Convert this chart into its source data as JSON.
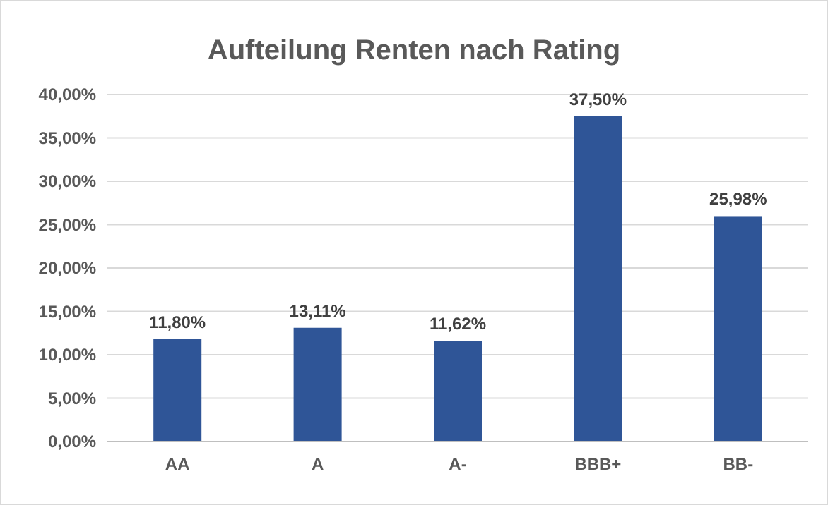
{
  "chart_data": {
    "type": "bar",
    "title": "Aufteilung Renten nach Rating",
    "categories": [
      "AA",
      "A",
      "A-",
      "BBB+",
      "BB-"
    ],
    "values": [
      11.8,
      13.11,
      11.62,
      37.5,
      25.98
    ],
    "value_labels": [
      "11,80%",
      "13,11%",
      "11,62%",
      "37,50%",
      "25,98%"
    ],
    "color": "#2f5597",
    "ylim": [
      0,
      40
    ],
    "yticks": [
      {
        "value": 0,
        "label": "0,00%"
      },
      {
        "value": 5,
        "label": "5,00%"
      },
      {
        "value": 10,
        "label": "10,00%"
      },
      {
        "value": 15,
        "label": "15,00%"
      },
      {
        "value": 20,
        "label": "20,00%"
      },
      {
        "value": 25,
        "label": "25,00%"
      },
      {
        "value": 30,
        "label": "30,00%"
      },
      {
        "value": 35,
        "label": "35,00%"
      },
      {
        "value": 40,
        "label": "40,00%"
      }
    ],
    "grid": "y"
  }
}
